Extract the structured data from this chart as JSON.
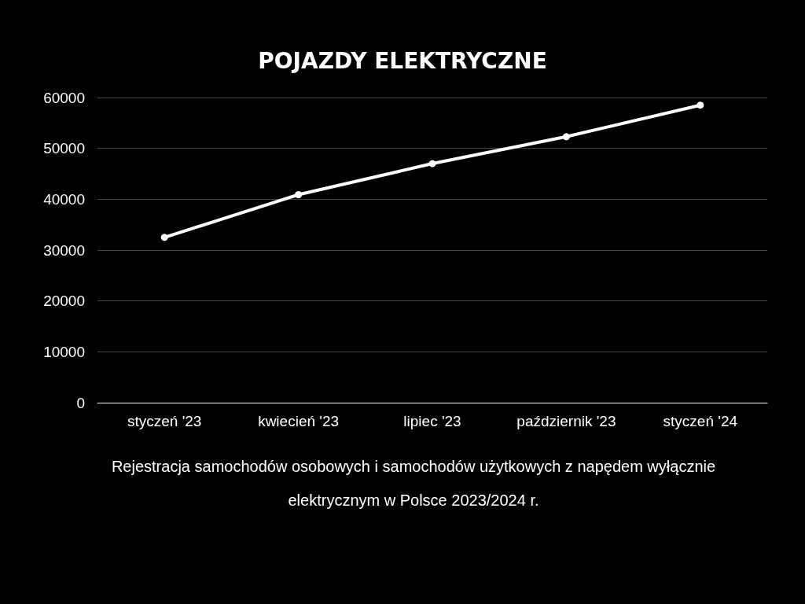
{
  "chart_data": {
    "type": "line",
    "title": "POJAZDY ELEKTRYCZNE",
    "categories": [
      "styczeń '23",
      "kwiecień '23",
      "lipiec '23",
      "październik '23",
      "styczeń '24"
    ],
    "series": [
      {
        "color": "#ffffff",
        "values": [
          32500,
          40900,
          47000,
          52300,
          58500
        ]
      }
    ],
    "ylim": [
      0,
      60000
    ],
    "yticks": [
      0,
      10000,
      20000,
      30000,
      40000,
      50000,
      60000
    ],
    "grid": "y",
    "marker": "circle",
    "line_style": "solid",
    "annotations": [
      "Rejestracja samochodów osobowych i samochodów użytkowych z napędem wyłącznie elektrycznym w Polsce 2023/2024 r."
    ]
  }
}
